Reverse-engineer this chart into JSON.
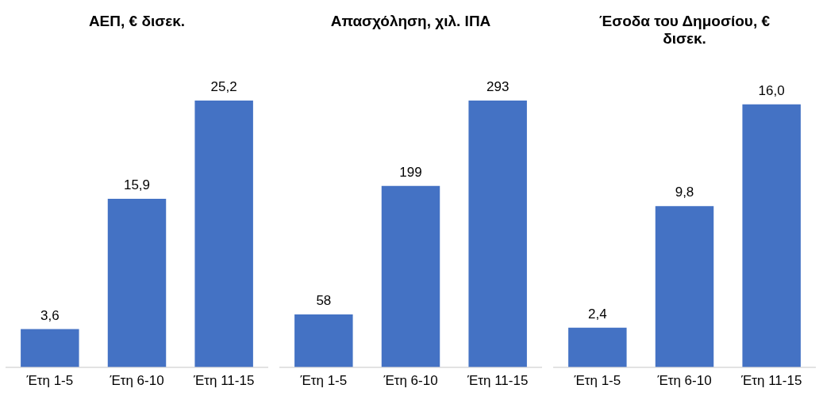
{
  "chart_data": [
    {
      "type": "bar",
      "title": "ΑΕΠ, € δισεκ.",
      "categories": [
        "Έτη 1-5",
        "Έτη 6-10",
        "Έτη 11-15"
      ],
      "values": [
        3.6,
        15.9,
        25.2
      ],
      "value_labels": [
        "3,6",
        "15,9",
        "25,2"
      ],
      "color": "#4472c4",
      "tick_labels": "x"
    },
    {
      "type": "bar",
      "title": "Απασχόληση, χιλ. ΙΠΑ",
      "categories": [
        "Έτη 1-5",
        "Έτη 6-10",
        "Έτη 11-15"
      ],
      "values": [
        58,
        199,
        293
      ],
      "value_labels": [
        "58",
        "199",
        "293"
      ],
      "color": "#4472c4",
      "tick_labels": "x"
    },
    {
      "type": "bar",
      "title": "Έσοδα του Δημοσίου, € δισεκ.",
      "categories": [
        "Έτη 1-5",
        "Έτη 6-10",
        "Έτη 11-15"
      ],
      "values": [
        2.4,
        9.8,
        16.0
      ],
      "value_labels": [
        "2,4",
        "9,8",
        "16,0"
      ],
      "color": "#4472c4",
      "tick_labels": "x"
    }
  ]
}
